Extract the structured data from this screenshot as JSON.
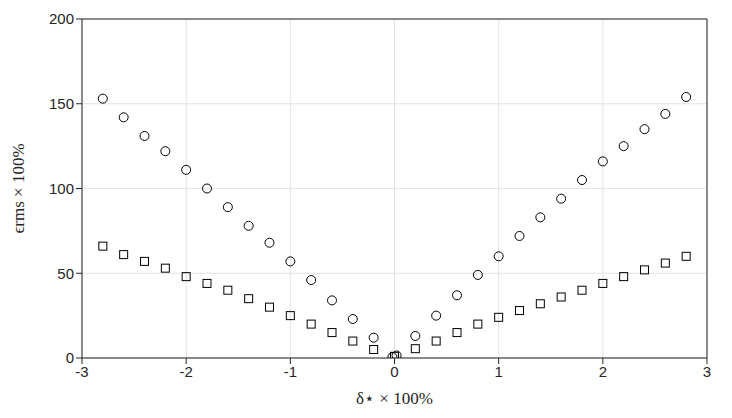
{
  "chart_data": {
    "type": "scatter",
    "xlabel": "δ⋆ × 100%",
    "ylabel": "ϵrms × 100%",
    "xlim": [
      -3,
      3
    ],
    "xticks": [
      -3,
      -2,
      -1,
      0,
      1,
      2,
      3
    ],
    "ylim": [
      0,
      200
    ],
    "yticks": [
      0,
      50,
      100,
      150,
      200
    ],
    "grid": true,
    "series": [
      {
        "marker": "circle",
        "color": "#000000",
        "x": [
          -2.8,
          -2.6,
          -2.4,
          -2.2,
          -2.0,
          -1.8,
          -1.6,
          -1.4,
          -1.2,
          -1.0,
          -0.8,
          -0.6,
          -0.4,
          -0.2,
          -0.02,
          0.02,
          0.2,
          0.4,
          0.6,
          0.8,
          1.0,
          1.2,
          1.4,
          1.6,
          1.8,
          2.0,
          2.2,
          2.4,
          2.6,
          2.8
        ],
        "values": [
          153,
          142,
          131,
          122,
          111,
          100,
          89,
          78,
          68,
          57,
          46,
          34,
          23,
          12,
          0.5,
          1.5,
          13,
          25,
          37,
          49,
          60,
          72,
          83,
          94,
          105,
          116,
          125,
          135,
          144,
          154
        ]
      },
      {
        "marker": "square",
        "color": "#000000",
        "x": [
          -2.8,
          -2.6,
          -2.4,
          -2.2,
          -2.0,
          -1.8,
          -1.6,
          -1.4,
          -1.2,
          -1.0,
          -0.8,
          -0.6,
          -0.4,
          -0.2,
          0.0,
          0.2,
          0.4,
          0.6,
          0.8,
          1.0,
          1.2,
          1.4,
          1.6,
          1.8,
          2.0,
          2.2,
          2.4,
          2.6,
          2.8
        ],
        "values": [
          66,
          61,
          57,
          53,
          48,
          44,
          40,
          35,
          30,
          25,
          20,
          15,
          10,
          5,
          1,
          5.5,
          10,
          15,
          20,
          24,
          28,
          32,
          36,
          40,
          44,
          48,
          52,
          56,
          60
        ]
      }
    ]
  }
}
